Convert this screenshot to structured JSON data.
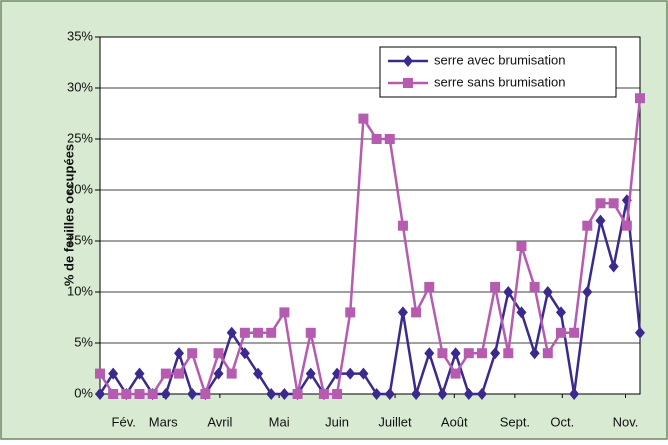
{
  "chart_data": {
    "type": "line",
    "ylabel": "% de feuilles occupées",
    "x": [
      0,
      1,
      2,
      3,
      4,
      5,
      6,
      7,
      8,
      9,
      10,
      11,
      12,
      13,
      14,
      15,
      16,
      17,
      18,
      19,
      20,
      21,
      22,
      23,
      24,
      25,
      26,
      27,
      28,
      29,
      30,
      31,
      32,
      33,
      34,
      35,
      36,
      37,
      38,
      39,
      40,
      41
    ],
    "xlim": [
      0,
      41
    ],
    "xticks": [
      {
        "value": 1.8,
        "label": "Fév."
      },
      {
        "value": 4.8,
        "label": "Mars"
      },
      {
        "value": 9.1,
        "label": "Avril"
      },
      {
        "value": 13.6,
        "label": "Mai"
      },
      {
        "value": 18,
        "label": "Juin"
      },
      {
        "value": 22.4,
        "label": "Juillet"
      },
      {
        "value": 26.9,
        "label": "Août"
      },
      {
        "value": 31.5,
        "label": "Sept."
      },
      {
        "value": 35.1,
        "label": "Oct."
      },
      {
        "value": 39.9,
        "label": "Nov."
      }
    ],
    "ylim": [
      0,
      35
    ],
    "yticks": [
      {
        "value": 0,
        "label": "0%"
      },
      {
        "value": 5,
        "label": "5%"
      },
      {
        "value": 10,
        "label": "10%"
      },
      {
        "value": 15,
        "label": "15%"
      },
      {
        "value": 20,
        "label": "20%"
      },
      {
        "value": 25,
        "label": "25%"
      },
      {
        "value": 30,
        "label": "30%"
      },
      {
        "value": 35,
        "label": "35%"
      }
    ],
    "grid": true,
    "legend": "top-right",
    "series": [
      {
        "name": "serre avec brumisation",
        "color": "#3b2a8c",
        "marker": "diamond",
        "values": [
          0,
          2,
          0,
          2,
          0,
          0,
          4,
          0,
          0,
          2,
          6,
          4,
          2,
          0,
          0,
          0,
          2,
          0,
          2,
          2,
          2,
          0,
          0,
          8,
          0,
          4,
          0,
          4,
          0,
          0,
          4,
          10,
          8,
          4,
          10,
          8,
          0,
          10,
          17,
          12.5,
          19,
          6
        ]
      },
      {
        "name": "serre sans brumisation",
        "color": "#b55bb0",
        "marker": "square",
        "values": [
          2,
          0,
          0,
          0,
          0,
          2,
          2,
          4,
          0,
          4,
          2,
          6,
          6,
          6,
          8,
          0,
          6,
          0,
          0,
          8,
          27,
          25,
          25,
          16.5,
          8,
          10.5,
          4,
          2,
          4,
          4,
          10.5,
          4,
          14.5,
          10.5,
          4,
          6,
          6,
          16.5,
          18.7,
          18.7,
          16.5,
          29
        ]
      }
    ]
  }
}
